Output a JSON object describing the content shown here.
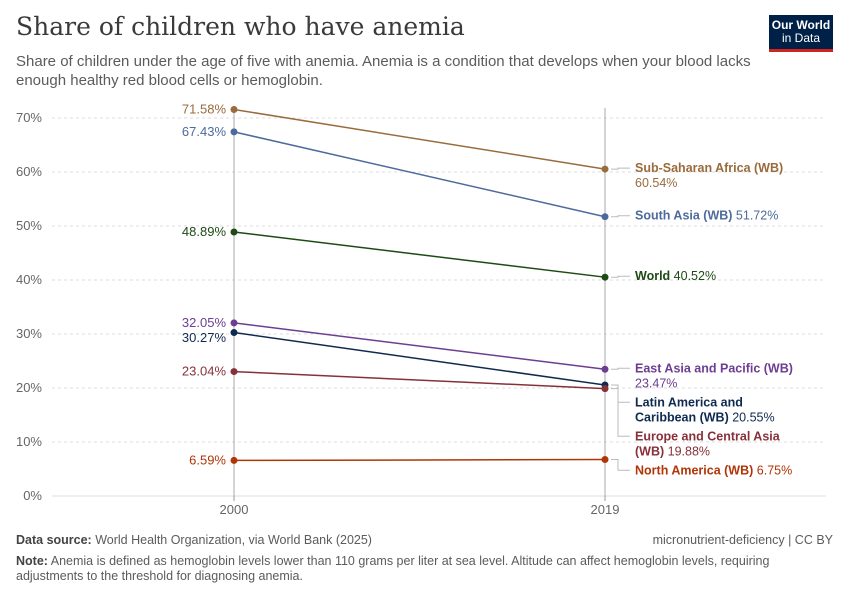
{
  "header": {
    "title": "Share of children who have anemia",
    "subtitle": "Share of children under the age of five with anemia. Anemia is a condition that develops when your blood lacks enough healthy red blood cells or hemoglobin.",
    "logo_line1": "Our World",
    "logo_line2": "in Data"
  },
  "footer": {
    "source_label": "Data source:",
    "source_text": "World Health Organization, via World Bank (2025)",
    "license": "micronutrient-deficiency | CC BY",
    "note_label": "Note:",
    "note_text": "Anemia is defined as hemoglobin levels lower than 110 grams per liter at sea level. Altitude can affect hemoglobin levels, requiring adjustments to the threshold for diagnosing anemia."
  },
  "chart_data": {
    "type": "line",
    "x": [
      2000,
      2019
    ],
    "x_tick_labels": [
      "2000",
      "2019"
    ],
    "ylim": [
      0,
      70
    ],
    "y_ticks": [
      0,
      10,
      20,
      30,
      40,
      50,
      60,
      70
    ],
    "y_tick_labels": [
      "0%",
      "10%",
      "20%",
      "30%",
      "40%",
      "50%",
      "60%",
      "70%"
    ],
    "grid": true,
    "series": [
      {
        "name": "Sub-Saharan Africa (WB)",
        "name_lines": [
          "Sub-Saharan Africa (WB)"
        ],
        "value_on_new_line": true,
        "values": [
          71.58,
          60.54
        ],
        "start_label": "71.58%",
        "end_label": "60.54%",
        "color": "#9a6b3c"
      },
      {
        "name": "South Asia (WB)",
        "name_lines": [
          "South Asia (WB)"
        ],
        "value_on_new_line": false,
        "values": [
          67.43,
          51.72
        ],
        "start_label": "67.43%",
        "end_label": "51.72%",
        "color": "#4c6a9c"
      },
      {
        "name": "World",
        "name_lines": [
          "World"
        ],
        "value_on_new_line": false,
        "values": [
          48.89,
          40.52
        ],
        "start_label": "48.89%",
        "end_label": "40.52%",
        "color": "#1e4a14"
      },
      {
        "name": "East Asia and Pacific (WB)",
        "name_lines": [
          "East Asia and Pacific (WB)"
        ],
        "value_on_new_line": true,
        "values": [
          32.05,
          23.47
        ],
        "start_label": "32.05%",
        "end_label": "23.47%",
        "color": "#6c3d91"
      },
      {
        "name": "Latin America and Caribbean (WB)",
        "name_lines": [
          "Latin America and",
          "Caribbean (WB)"
        ],
        "value_on_new_line": false,
        "values": [
          30.27,
          20.55
        ],
        "start_label": "30.27%",
        "end_label": "20.55%",
        "color": "#0f2a4f"
      },
      {
        "name": "Europe and Central Asia (WB)",
        "name_lines": [
          "Europe and Central Asia",
          "(WB)"
        ],
        "value_on_new_line": false,
        "values": [
          23.04,
          19.88
        ],
        "start_label": "23.04%",
        "end_label": "19.88%",
        "color": "#883039"
      },
      {
        "name": "North America (WB)",
        "name_lines": [
          "North America (WB)"
        ],
        "value_on_new_line": false,
        "values": [
          6.59,
          6.75
        ],
        "start_label": "6.59%",
        "end_label": "6.75%",
        "color": "#b13507"
      }
    ]
  }
}
